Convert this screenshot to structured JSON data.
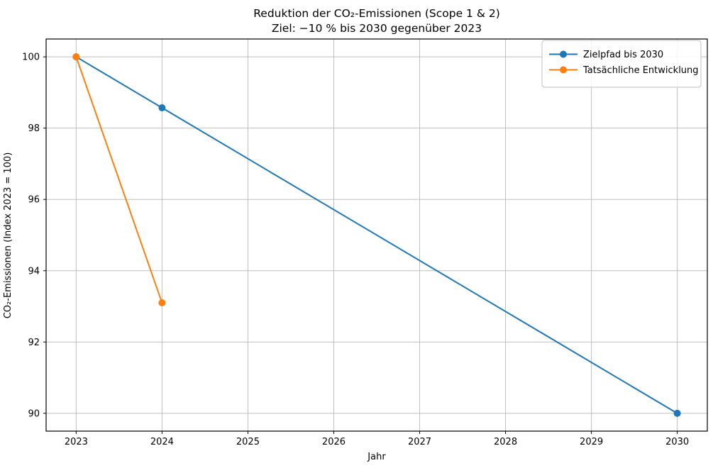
{
  "chart_data": {
    "type": "line",
    "title": "Reduktion der CO₂-Emissionen (Scope 1 & 2)",
    "subtitle": "Ziel: −10 % bis 2030 gegenüber 2023",
    "xlabel": "Jahr",
    "ylabel": "CO₂-Emissionen (Index 2023 = 100)",
    "xlim": [
      2022.65,
      2030.35
    ],
    "ylim": [
      89.5,
      100.5
    ],
    "xticks": [
      2023,
      2024,
      2025,
      2026,
      2027,
      2028,
      2029,
      2030
    ],
    "yticks": [
      90,
      92,
      94,
      96,
      98,
      100
    ],
    "grid": true,
    "legend_position": "upper right",
    "series": [
      {
        "name": "Zielpfad bis 2030",
        "color": "#1f77b4",
        "marker": "circle",
        "x": [
          2023,
          2024,
          2030
        ],
        "y": [
          100,
          98.57,
          90
        ]
      },
      {
        "name": "Tatsächliche Entwicklung",
        "color": "#ff7f0e",
        "marker": "circle",
        "x": [
          2023,
          2024
        ],
        "y": [
          100,
          93.1
        ]
      }
    ],
    "colors": {
      "grid": "#bfbfbf",
      "spine": "#000000",
      "background": "#ffffff",
      "legend_border": "#cccccc"
    }
  }
}
